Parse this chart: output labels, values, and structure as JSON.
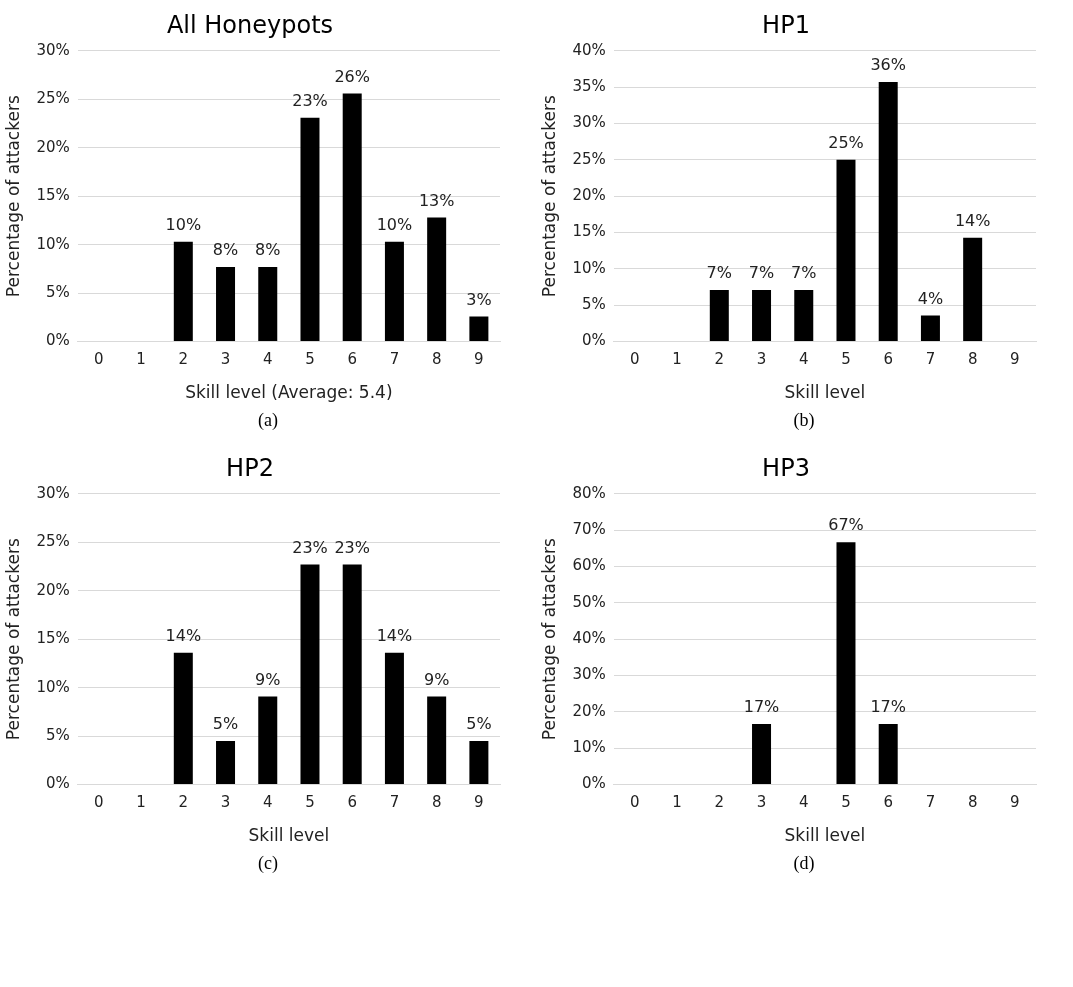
{
  "chart_data": [
    {
      "type": "bar",
      "title": "All Honeypots",
      "xlabel": "Skill level (Average: 5.4)",
      "ylabel": "Percentage of attackers",
      "categories": [
        "0",
        "1",
        "2",
        "3",
        "4",
        "5",
        "6",
        "7",
        "8",
        "9"
      ],
      "values": [
        0,
        0,
        10.3,
        7.7,
        7.7,
        23.1,
        25.6,
        10.3,
        12.8,
        2.6
      ],
      "value_labels": [
        null,
        null,
        "10%",
        "8%",
        "8%",
        "23%",
        "26%",
        "10%",
        "13%",
        "3%"
      ],
      "color": "#000000",
      "ylim": [
        0,
        30
      ],
      "yticks": [
        {
          "value": 0,
          "label": "0%"
        },
        {
          "value": 5,
          "label": "5%"
        },
        {
          "value": 10,
          "label": "10%"
        },
        {
          "value": 15,
          "label": "15%"
        },
        {
          "value": 20,
          "label": "20%"
        },
        {
          "value": 25,
          "label": "25%"
        },
        {
          "value": 30,
          "label": "30%"
        }
      ],
      "grid": "y",
      "annotations": [
        "(a)"
      ]
    },
    {
      "type": "bar",
      "title": "HP1",
      "xlabel": "Skill level",
      "ylabel": "Percentage of attackers",
      "categories": [
        "0",
        "1",
        "2",
        "3",
        "4",
        "5",
        "6",
        "7",
        "8",
        "9"
      ],
      "values": [
        0,
        0,
        7.1,
        7.1,
        7.1,
        25,
        35.7,
        3.6,
        14.3,
        0
      ],
      "value_labels": [
        null,
        null,
        "7%",
        "7%",
        "7%",
        "25%",
        "36%",
        "4%",
        "14%",
        null
      ],
      "color": "#000000",
      "ylim": [
        0,
        40
      ],
      "yticks": [
        {
          "value": 0,
          "label": "0%"
        },
        {
          "value": 5,
          "label": "5%"
        },
        {
          "value": 10,
          "label": "10%"
        },
        {
          "value": 15,
          "label": "15%"
        },
        {
          "value": 20,
          "label": "20%"
        },
        {
          "value": 25,
          "label": "25%"
        },
        {
          "value": 30,
          "label": "30%"
        },
        {
          "value": 35,
          "label": "35%"
        },
        {
          "value": 40,
          "label": "40%"
        }
      ],
      "grid": "y",
      "annotations": [
        "(b)"
      ]
    },
    {
      "type": "bar",
      "title": "HP2",
      "xlabel": "Skill level",
      "ylabel": "Percentage of attackers",
      "categories": [
        "0",
        "1",
        "2",
        "3",
        "4",
        "5",
        "6",
        "7",
        "8",
        "9"
      ],
      "values": [
        0,
        0,
        13.6,
        4.5,
        9.1,
        22.7,
        22.7,
        13.6,
        9.1,
        4.5
      ],
      "value_labels": [
        null,
        null,
        "14%",
        "5%",
        "9%",
        "23%",
        "23%",
        "14%",
        "9%",
        "5%"
      ],
      "color": "#000000",
      "ylim": [
        0,
        30
      ],
      "yticks": [
        {
          "value": 0,
          "label": "0%"
        },
        {
          "value": 5,
          "label": "5%"
        },
        {
          "value": 10,
          "label": "10%"
        },
        {
          "value": 15,
          "label": "15%"
        },
        {
          "value": 20,
          "label": "20%"
        },
        {
          "value": 25,
          "label": "25%"
        },
        {
          "value": 30,
          "label": "30%"
        }
      ],
      "grid": "y",
      "annotations": [
        "(c)"
      ]
    },
    {
      "type": "bar",
      "title": "HP3",
      "xlabel": "Skill level",
      "ylabel": "Percentage of attackers",
      "categories": [
        "0",
        "1",
        "2",
        "3",
        "4",
        "5",
        "6",
        "7",
        "8",
        "9"
      ],
      "values": [
        0,
        0,
        0,
        16.7,
        0,
        66.7,
        16.7,
        0,
        0,
        0
      ],
      "value_labels": [
        null,
        null,
        null,
        "17%",
        null,
        "67%",
        "17%",
        null,
        null,
        null
      ],
      "color": "#000000",
      "ylim": [
        0,
        80
      ],
      "yticks": [
        {
          "value": 0,
          "label": "0%"
        },
        {
          "value": 10,
          "label": "10%"
        },
        {
          "value": 20,
          "label": "20%"
        },
        {
          "value": 30,
          "label": "30%"
        },
        {
          "value": 40,
          "label": "40%"
        },
        {
          "value": 50,
          "label": "50%"
        },
        {
          "value": 60,
          "label": "60%"
        },
        {
          "value": 70,
          "label": "70%"
        },
        {
          "value": 80,
          "label": "80%"
        }
      ],
      "grid": "y",
      "annotations": [
        "(d)"
      ]
    }
  ]
}
